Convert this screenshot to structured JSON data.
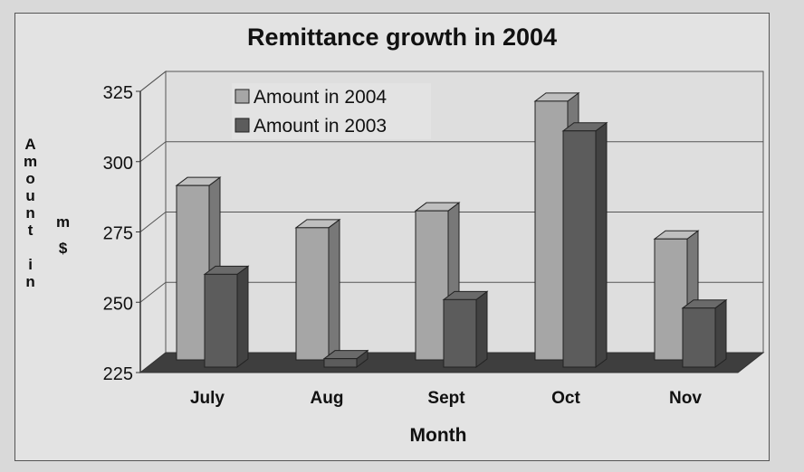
{
  "chart_data": {
    "type": "bar",
    "title": "Remittance growth in 2004",
    "xlabel": "Month",
    "ylabel": [
      "Amount",
      "in",
      "m",
      "$"
    ],
    "categories": [
      "July",
      "Aug",
      "Sept",
      "Oct",
      "Nov"
    ],
    "series": [
      {
        "name": "Amount in 2004",
        "values": [
          287,
          272,
          278,
          317,
          268
        ],
        "color": "#a6a6a6"
      },
      {
        "name": "Amount in 2003",
        "values": [
          258,
          228,
          249,
          309,
          246
        ],
        "color": "#5c5c5c"
      }
    ],
    "ylim": [
      225,
      325
    ],
    "yticks": [
      225,
      250,
      275,
      300,
      325
    ],
    "grid": true,
    "legend": "top-left"
  }
}
